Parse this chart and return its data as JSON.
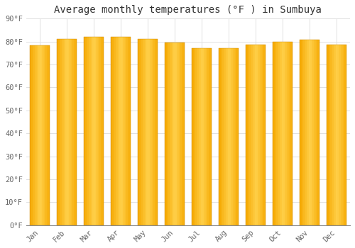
{
  "title": "Average monthly temperatures (°F ) in Sumbuya",
  "months": [
    "Jan",
    "Feb",
    "Mar",
    "Apr",
    "May",
    "Jun",
    "Jul",
    "Aug",
    "Sep",
    "Oct",
    "Nov",
    "Dec"
  ],
  "values": [
    78.4,
    81.0,
    82.0,
    82.2,
    81.0,
    79.7,
    77.2,
    77.2,
    78.8,
    80.0,
    80.8,
    78.8
  ],
  "bar_color_center": "#FFD04A",
  "bar_color_edge": "#F5A800",
  "background_color": "#FFFFFF",
  "plot_bg_color": "#FFFFFF",
  "grid_color": "#E0E0E0",
  "spine_color": "#888888",
  "tick_color": "#666666",
  "title_color": "#333333",
  "ylim": [
    0,
    90
  ],
  "ytick_step": 10,
  "bar_width": 0.75,
  "title_fontsize": 10,
  "tick_fontsize": 7.5,
  "font_family": "monospace",
  "gradient_steps": 20
}
